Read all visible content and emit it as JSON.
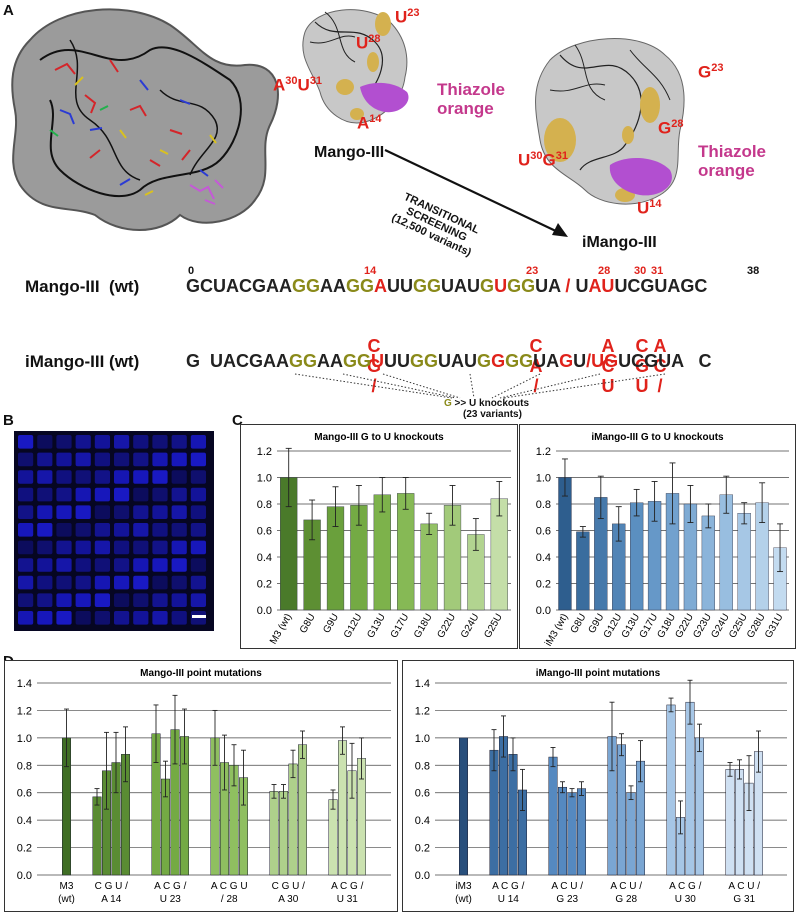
{
  "panels": {
    "a": "A",
    "b": "B",
    "c": "C",
    "d": "D"
  },
  "panel_a": {
    "mango_title": "Mango-III",
    "imango_title": "iMango-III",
    "left_model_labels": {
      "u23": "U",
      "u23_sup": "23",
      "u28": "U",
      "u28_sup": "28",
      "a30": "A",
      "a30_sup": "30",
      "u31": "U",
      "u31_sup": "31",
      "a14": "A",
      "a14_sup": "14",
      "dye1": "Thiazole",
      "dye2": "orange"
    },
    "right_model_labels": {
      "g23": "G",
      "g23_sup": "23",
      "g28": "G",
      "g28_sup": "28",
      "u30": "U",
      "u30_sup": "30",
      "g31": "G",
      "g31_sup": "31",
      "u14": "U",
      "u14_sup": "14",
      "dye1": "Thiazole",
      "dye2": "orange"
    },
    "arrow_text": [
      "TRANSITIONAL",
      "SCREENING",
      "(12,500 variants)"
    ],
    "seq1_label": "Mango-III  (wt)",
    "seq2_label": "iMango-III (wt)",
    "pos": {
      "p0": "0",
      "p14": "14",
      "p23": "23",
      "p28": "28",
      "p30": "30",
      "p31": "31",
      "p38": "38"
    },
    "seq1_parts": [
      {
        "t": "GCUACGAA",
        "c": "k"
      },
      {
        "t": "GG",
        "c": "o"
      },
      {
        "t": "AA",
        "c": "k"
      },
      {
        "t": "GG",
        "c": "o"
      },
      {
        "t": "A",
        "c": "r"
      },
      {
        "t": "UU",
        "c": "k"
      },
      {
        "t": "GG",
        "c": "o"
      },
      {
        "t": "UAU",
        "c": "k"
      },
      {
        "t": "G",
        "c": "o"
      },
      {
        "t": "U",
        "c": "r"
      },
      {
        "t": "GG",
        "c": "o"
      },
      {
        "t": "UA",
        "c": "k"
      },
      {
        "t": " / ",
        "c": "r"
      },
      {
        "t": "U",
        "c": "k"
      },
      {
        "t": "AU",
        "c": "r"
      },
      {
        "t": "UCGUAGC",
        "c": "k"
      }
    ],
    "seq2_parts": [
      {
        "t": "G  UACGAA",
        "c": "k"
      },
      {
        "t": "GG",
        "c": "o"
      },
      {
        "t": "AA",
        "c": "k"
      },
      {
        "t": "GG",
        "c": "o"
      },
      {
        "t": "U",
        "c": "r"
      },
      {
        "t": "UU",
        "c": "k"
      },
      {
        "t": "GG",
        "c": "o"
      },
      {
        "t": "UAU",
        "c": "k"
      },
      {
        "t": "G",
        "c": "o"
      },
      {
        "t": "G",
        "c": "r"
      },
      {
        "t": "GG",
        "c": "o"
      },
      {
        "t": "UA",
        "c": "k"
      },
      {
        "t": "G",
        "c": "r"
      },
      {
        "t": "U",
        "c": "k"
      },
      {
        "t": "/",
        "c": "r"
      },
      {
        "t": "UG",
        "c": "r"
      },
      {
        "t": "UCGUA   C",
        "c": "k"
      }
    ],
    "stack14": [
      "C",
      "G",
      "/"
    ],
    "stack23": [
      "C",
      "A",
      "/"
    ],
    "stack28": [
      "A",
      "C",
      "U"
    ],
    "stack30": [
      "C",
      "G",
      "U"
    ],
    "stack31": [
      "A",
      "C",
      "/"
    ],
    "knockout_g": "G",
    "knockout_text": " >> U knockouts",
    "knockout_sub": "(23 variants)"
  },
  "colors": {
    "k": "#222222",
    "o": "#8a8a1a",
    "r": "#e0221b",
    "magenta": "#c4388c",
    "blue_fill": "#1a1acc"
  },
  "chart_data": [
    {
      "id": "c_left",
      "type": "bar",
      "title": "Mango-III G to U knockouts",
      "categories": [
        "M3 (wt)",
        "G8U",
        "G9U",
        "G12U",
        "G13U",
        "G17U",
        "G18U",
        "G22U",
        "G24U",
        "G25U"
      ],
      "values": [
        1.0,
        0.68,
        0.78,
        0.79,
        0.87,
        0.88,
        0.65,
        0.79,
        0.57,
        0.84
      ],
      "errors": [
        0.22,
        0.15,
        0.15,
        0.15,
        0.13,
        0.12,
        0.08,
        0.15,
        0.12,
        0.13
      ],
      "colors": [
        "#4a7a2a",
        "#5d8f33",
        "#6aa03c",
        "#74aa44",
        "#7db24b",
        "#86b955",
        "#93c165",
        "#a2ca7a",
        "#b2d490",
        "#c4dea8"
      ],
      "ylim": [
        0,
        1.2
      ],
      "yticks": [
        0.0,
        0.2,
        0.4,
        0.6,
        0.8,
        1.0,
        1.2
      ]
    },
    {
      "id": "c_right",
      "type": "bar",
      "title": "iMango-III G to U knockouts",
      "categories": [
        "iM3 (wt)",
        "G8U",
        "G9U",
        "G12U",
        "G13U",
        "G17U",
        "G18U",
        "G22U",
        "G23U",
        "G24U",
        "G25U",
        "G28U",
        "G31U"
      ],
      "values": [
        1.0,
        0.59,
        0.85,
        0.65,
        0.81,
        0.82,
        0.88,
        0.8,
        0.71,
        0.87,
        0.73,
        0.81,
        0.47
      ],
      "errors": [
        0.14,
        0.04,
        0.16,
        0.13,
        0.1,
        0.15,
        0.23,
        0.14,
        0.09,
        0.14,
        0.08,
        0.15,
        0.18
      ],
      "colors": [
        "#2e5e8e",
        "#3a6d9e",
        "#4679ab",
        "#5184b6",
        "#5b8fc0",
        "#6698c8",
        "#72a1ce",
        "#7fabd4",
        "#8bb4da",
        "#98bee0",
        "#a6c7e5",
        "#b4d1ea",
        "#c3dbf0"
      ],
      "ylim": [
        0,
        1.2
      ],
      "yticks": [
        0.0,
        0.2,
        0.4,
        0.6,
        0.8,
        1.0,
        1.2
      ]
    },
    {
      "id": "d_left",
      "type": "bar",
      "title": "Mango-III point mutations",
      "groups": [
        {
          "top": "M3",
          "bottom": "(wt)",
          "bars": [
            {
              "v": 1.0,
              "e": 0.21
            }
          ],
          "color": "#3f6e24"
        },
        {
          "top": "C G U  /",
          "bottom": "A 14",
          "bars": [
            {
              "v": 0.57,
              "e": 0.06
            },
            {
              "v": 0.76,
              "e": 0.28
            },
            {
              "v": 0.82,
              "e": 0.22
            },
            {
              "v": 0.88,
              "e": 0.2
            }
          ],
          "color": "#5a8c33"
        },
        {
          "top": "A C G  /",
          "bottom": "U 23",
          "bars": [
            {
              "v": 1.03,
              "e": 0.21
            },
            {
              "v": 0.7,
              "e": 0.13
            },
            {
              "v": 1.06,
              "e": 0.25
            },
            {
              "v": 1.01,
              "e": 0.2
            }
          ],
          "color": "#74aa44"
        },
        {
          "top": "A C G U",
          "bottom": "/ 28",
          "bars": [
            {
              "v": 1.0,
              "e": 0.2
            },
            {
              "v": 0.82,
              "e": 0.2
            },
            {
              "v": 0.8,
              "e": 0.15
            },
            {
              "v": 0.71,
              "e": 0.2
            }
          ],
          "color": "#8fbf60"
        },
        {
          "top": "C G U  /",
          "bottom": "A 30",
          "bars": [
            {
              "v": 0.61,
              "e": 0.05
            },
            {
              "v": 0.61,
              "e": 0.05
            },
            {
              "v": 0.81,
              "e": 0.1
            },
            {
              "v": 0.95,
              "e": 0.1
            }
          ],
          "color": "#aed08b"
        },
        {
          "top": "A C G  /",
          "bottom": "U 31",
          "bars": [
            {
              "v": 0.55,
              "e": 0.07
            },
            {
              "v": 0.98,
              "e": 0.1
            },
            {
              "v": 0.76,
              "e": 0.2
            },
            {
              "v": 0.85,
              "e": 0.15
            }
          ],
          "color": "#cbe2b0"
        }
      ],
      "ylim": [
        0,
        1.4
      ],
      "yticks": [
        0.0,
        0.2,
        0.4,
        0.6,
        0.8,
        1.0,
        1.2,
        1.4
      ]
    },
    {
      "id": "d_right",
      "type": "bar",
      "title": "iMango-III point mutations",
      "groups": [
        {
          "top": "iM3",
          "bottom": "(wt)",
          "bars": [
            {
              "v": 1.0,
              "e": 0.0
            }
          ],
          "color": "#284f7c"
        },
        {
          "top": "A C G  /",
          "bottom": "U 14",
          "bars": [
            {
              "v": 0.91,
              "e": 0.15
            },
            {
              "v": 1.01,
              "e": 0.15
            },
            {
              "v": 0.88,
              "e": 0.12
            },
            {
              "v": 0.62,
              "e": 0.15
            }
          ],
          "color": "#3c6ea3"
        },
        {
          "top": "A C U  /",
          "bottom": "G 23",
          "bars": [
            {
              "v": 0.86,
              "e": 0.07
            },
            {
              "v": 0.64,
              "e": 0.04
            },
            {
              "v": 0.6,
              "e": 0.03
            },
            {
              "v": 0.63,
              "e": 0.05
            }
          ],
          "color": "#5589c0"
        },
        {
          "top": "A C U  /",
          "bottom": "G 28",
          "bars": [
            {
              "v": 1.01,
              "e": 0.25
            },
            {
              "v": 0.95,
              "e": 0.08
            },
            {
              "v": 0.6,
              "e": 0.05
            },
            {
              "v": 0.83,
              "e": 0.15
            }
          ],
          "color": "#7aa6d3"
        },
        {
          "top": "A C G  /",
          "bottom": "U 30",
          "bars": [
            {
              "v": 1.24,
              "e": 0.05
            },
            {
              "v": 0.42,
              "e": 0.12
            },
            {
              "v": 1.26,
              "e": 0.16
            },
            {
              "v": 1.0,
              "e": 0.1
            }
          ],
          "color": "#a6c6e6"
        },
        {
          "top": "A C U  /",
          "bottom": "G 31",
          "bars": [
            {
              "v": 0.77,
              "e": 0.05
            },
            {
              "v": 0.77,
              "e": 0.07
            },
            {
              "v": 0.67,
              "e": 0.2
            },
            {
              "v": 0.9,
              "e": 0.15
            }
          ],
          "color": "#cfe0f2"
        }
      ],
      "ylim": [
        0,
        1.4
      ],
      "yticks": [
        0.0,
        0.2,
        0.4,
        0.6,
        0.8,
        1.0,
        1.2,
        1.4
      ]
    }
  ]
}
